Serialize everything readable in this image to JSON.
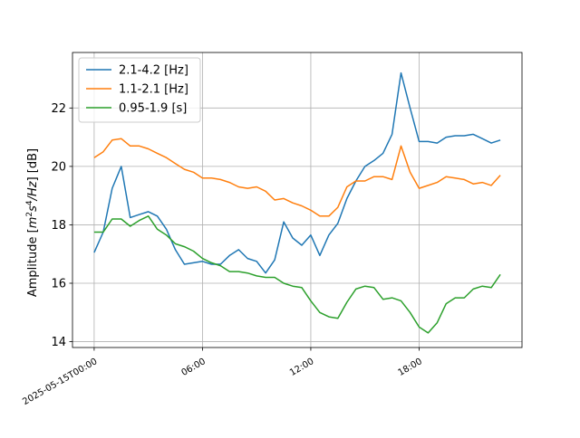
{
  "chart_data": {
    "type": "line",
    "title": "",
    "xlabel": "",
    "ylabel": "Amplitude [m²s⁴/Hz] [dB]",
    "ylabel_parts": {
      "prefix": "Amplitude [",
      "m": "m",
      "m_exp": "2",
      "s": "s",
      "s_exp": "4",
      "hz": "/Hz",
      "suffix": "] [dB]"
    },
    "x_unit": "hours",
    "x": [
      0,
      0.5,
      1,
      1.5,
      2,
      2.5,
      3,
      3.5,
      4,
      4.5,
      5,
      5.5,
      6,
      6.5,
      7,
      7.5,
      8,
      8.5,
      9,
      9.5,
      10,
      10.5,
      11,
      11.5,
      12,
      12.5,
      13,
      13.5,
      14,
      14.5,
      15,
      15.5,
      16,
      16.5,
      17,
      17.5,
      18,
      18.5,
      19,
      19.5,
      20,
      20.5,
      21,
      21.5,
      22,
      22.5,
      23
    ],
    "xlim": [
      -1.2,
      23.7
    ],
    "ylim": [
      13.8,
      23.9
    ],
    "x_ticks": [
      {
        "value": 0,
        "label": "2025-05-15T00:00"
      },
      {
        "value": 6,
        "label": "06:00"
      },
      {
        "value": 12,
        "label": "12:00"
      },
      {
        "value": 18,
        "label": "18:00"
      }
    ],
    "y_ticks": [
      {
        "value": 14,
        "label": "14"
      },
      {
        "value": 16,
        "label": "16"
      },
      {
        "value": 18,
        "label": "18"
      },
      {
        "value": 20,
        "label": "20"
      },
      {
        "value": 22,
        "label": "22"
      }
    ],
    "grid": true,
    "legend_position": "top-left",
    "series": [
      {
        "name": "2.1-4.2 [Hz]",
        "color": "#1f77b4",
        "values": [
          17.05,
          17.75,
          19.25,
          20.0,
          18.25,
          18.35,
          18.45,
          18.3,
          17.85,
          17.15,
          16.65,
          16.7,
          16.75,
          16.65,
          16.65,
          16.95,
          17.15,
          16.85,
          16.75,
          16.35,
          16.8,
          18.1,
          17.55,
          17.3,
          17.65,
          16.95,
          17.65,
          18.05,
          18.9,
          19.5,
          20.0,
          20.2,
          20.45,
          21.1,
          23.2,
          22.0,
          20.85,
          20.85,
          20.8,
          21.0,
          21.05,
          21.05,
          21.1,
          20.95,
          20.8,
          20.9,
          null
        ]
      },
      {
        "name": "1.1-2.1 [Hz]",
        "color": "#ff7f0e",
        "values": [
          20.3,
          20.5,
          20.9,
          20.95,
          20.7,
          20.7,
          20.6,
          20.45,
          20.3,
          20.1,
          19.9,
          19.8,
          19.6,
          19.6,
          19.55,
          19.45,
          19.3,
          19.25,
          19.3,
          19.15,
          18.85,
          18.9,
          18.75,
          18.65,
          18.5,
          18.3,
          18.3,
          18.6,
          19.3,
          19.5,
          19.5,
          19.65,
          19.65,
          19.55,
          20.7,
          19.8,
          19.25,
          19.35,
          19.45,
          19.65,
          19.6,
          19.55,
          19.4,
          19.45,
          19.35,
          19.7,
          null
        ]
      },
      {
        "name": "0.95-1.9 [s]",
        "color": "#2ca02c",
        "values": [
          17.75,
          17.75,
          18.2,
          18.2,
          17.95,
          18.15,
          18.3,
          17.85,
          17.65,
          17.35,
          17.25,
          17.1,
          16.85,
          16.7,
          16.6,
          16.4,
          16.4,
          16.35,
          16.25,
          16.2,
          16.2,
          16.0,
          15.9,
          15.85,
          15.4,
          15.0,
          14.85,
          14.8,
          15.35,
          15.8,
          15.9,
          15.85,
          15.45,
          15.5,
          15.4,
          15.0,
          14.5,
          14.3,
          14.65,
          15.3,
          15.5,
          15.5,
          15.8,
          15.9,
          15.85,
          16.3,
          null
        ]
      }
    ]
  }
}
